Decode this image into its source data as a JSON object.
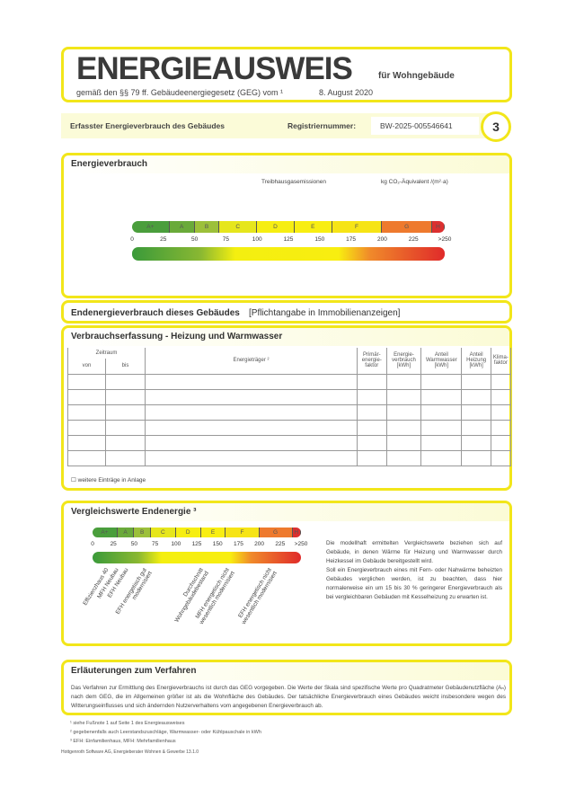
{
  "header": {
    "title": "ENERGIEAUSWEIS",
    "for": "für Wohngebäude",
    "subtitle": "gemäß den §§ 79 ff. Gebäudeenergiegesetz (GEG) vom ¹",
    "date": "8. August 2020"
  },
  "registration": {
    "section": "Erfasster Energieverbrauch des Gebäudes",
    "label": "Registriernummer:",
    "value": "BW-2025-005546641",
    "page": "3"
  },
  "energy": {
    "title": "Energieverbrauch",
    "ghg_label": "Treibhausgasemissionen",
    "ghg_unit": "kg CO₂-Äquivalent /(m²·a)"
  },
  "scale": {
    "classes": [
      {
        "label": "A+",
        "from": 0,
        "to": 30,
        "color": "#4a9e3c"
      },
      {
        "label": "A",
        "from": 30,
        "to": 50,
        "color": "#6aaa3a"
      },
      {
        "label": "B",
        "from": 50,
        "to": 70,
        "color": "#9cc03a"
      },
      {
        "label": "C",
        "from": 70,
        "to": 100,
        "color": "#e6e61c"
      },
      {
        "label": "D",
        "from": 100,
        "to": 130,
        "color": "#f6ee12"
      },
      {
        "label": "E",
        "from": 130,
        "to": 160,
        "color": "#f8ee12"
      },
      {
        "label": "F",
        "from": 160,
        "to": 200,
        "color": "#f6e416"
      },
      {
        "label": "G",
        "from": 200,
        "to": 240,
        "color": "#ee7a2e"
      },
      {
        "label": "H",
        "from": 240,
        "to": 250,
        "color": "#dc3030"
      }
    ],
    "ticks": [
      "0",
      "25",
      "50",
      "75",
      "100",
      "125",
      "150",
      "175",
      "200",
      "225",
      ">250"
    ]
  },
  "final_energy": {
    "label": "Endenergieverbrauch dieses Gebäudes",
    "note": "[Pflichtangabe in Immobilienanzeigen]"
  },
  "consumption": {
    "title": "Verbrauchserfassung - Heizung und Warmwasser",
    "period": "Zeitraum",
    "from": "von",
    "to": "bis",
    "carrier": "Energieträger ²",
    "cols": [
      "Primär-energie-faktor",
      "Energie-verbrauch [kWh]",
      "Anteil Warmwasser [kWh]",
      "Anteil Heizung [kWh]",
      "Klima-faktor"
    ],
    "rows": 6,
    "more": "weitere Einträge in Anlage"
  },
  "comparison": {
    "title": "Vergleichswerte Endenergie ³",
    "labels": [
      {
        "text": "Effizienzhaus 40",
        "value": 15
      },
      {
        "text": "MFH Neubau",
        "value": 27
      },
      {
        "text": "EFH Neubau",
        "value": 38
      },
      {
        "text": "EFH energetisch gut modernisiert",
        "value": 60
      },
      {
        "text": "Durchschnitt Wohngebäudebestand",
        "value": 128
      },
      {
        "text": "MFH energetisch nicht wesentlich modernisiert",
        "value": 160
      },
      {
        "text": "EFH energetisch nicht wesentlich modernisiert",
        "value": 210
      }
    ],
    "text1": "Die modellhaft ermittelten Vergleichswerte beziehen sich auf Gebäude, in denen Wärme für Heizung und Warmwasser durch Heizkessel im Gebäude bereitgestellt wird.",
    "text2": "Soll ein Energieverbrauch eines mit Fern- oder Nahwärme beheizten Gebäudes verglichen werden, ist zu beachten, dass hier normalerweise ein um 15 bis 30 % geringerer Energieverbrauch als bei vergleichbaren Gebäuden mit Kesselheizung zu erwarten ist."
  },
  "explanation": {
    "title": "Erläuterungen zum Verfahren",
    "text": "Das Verfahren zur Ermittlung des Energieverbrauchs ist durch das GEG vorgegeben. Die Werte der Skala sind spezifische Werte pro Quadratmeter Gebäudenutzfläche (Aₙ) nach dem GEG, die im Allgemeinen größer ist als die Wohnfläche des Gebäudes. Der tatsächliche Energieverbrauch eines Gebäudes weicht insbesondere wegen des Witterungseinflusses und sich ändernden Nutzerverhaltens vom angegebenen Energieverbrauch ab."
  },
  "footnotes": [
    "¹  siehe Fußnote 1 auf Seite 1 des Energieausweises",
    "²  gegebenenfalls auch Leerstandszuschläge, Warmwasser- oder Kühlpauschale in kWh",
    "³  EFH: Einfamilienhaus, MFH: Mehrfamilienhaus"
  ],
  "software": "Hottgenroth Software AG, Energieberater Wohnen & Gewerbe 13.1.0"
}
